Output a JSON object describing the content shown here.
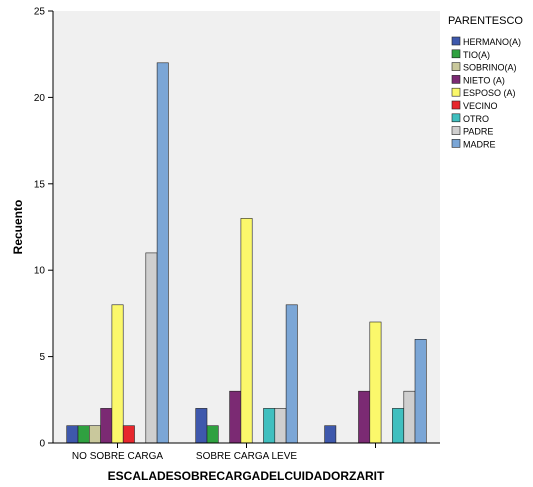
{
  "chart_data": {
    "type": "bar",
    "title": "",
    "xlabel": "ESCALADESOBRECARGADELCUIDADORZARIT",
    "ylabel": "Recuento",
    "ylim": [
      0,
      25
    ],
    "yticks": [
      0,
      5,
      10,
      15,
      20,
      25
    ],
    "grid": false,
    "legend": {
      "title": "PARENTESCO",
      "placement": "right"
    },
    "categories": [
      "NO SOBRE CARGA",
      "SOBRE CARGA LEVE",
      ""
    ],
    "series": [
      {
        "name": "HERMANO(A)",
        "color": "#3e58ac",
        "values": [
          1,
          2,
          1
        ]
      },
      {
        "name": "TIO(A)",
        "color": "#2fa140",
        "values": [
          1,
          1,
          0
        ]
      },
      {
        "name": "SOBRINO(A)",
        "color": "#c9c89c",
        "values": [
          1,
          0,
          0
        ]
      },
      {
        "name": "NIETO (A)",
        "color": "#7b2a73",
        "values": [
          2,
          3,
          3
        ]
      },
      {
        "name": "ESPOSO (A)",
        "color": "#fbf86b",
        "values": [
          8,
          13,
          7
        ]
      },
      {
        "name": "VECINO",
        "color": "#e7272d",
        "values": [
          1,
          0,
          0
        ]
      },
      {
        "name": "OTRO",
        "color": "#40bfbf",
        "values": [
          0,
          2,
          2
        ]
      },
      {
        "name": "PADRE",
        "color": "#cfcfcf",
        "values": [
          11,
          2,
          3
        ]
      },
      {
        "name": "MADRE",
        "color": "#7ba6d6",
        "values": [
          22,
          8,
          6
        ]
      }
    ]
  }
}
